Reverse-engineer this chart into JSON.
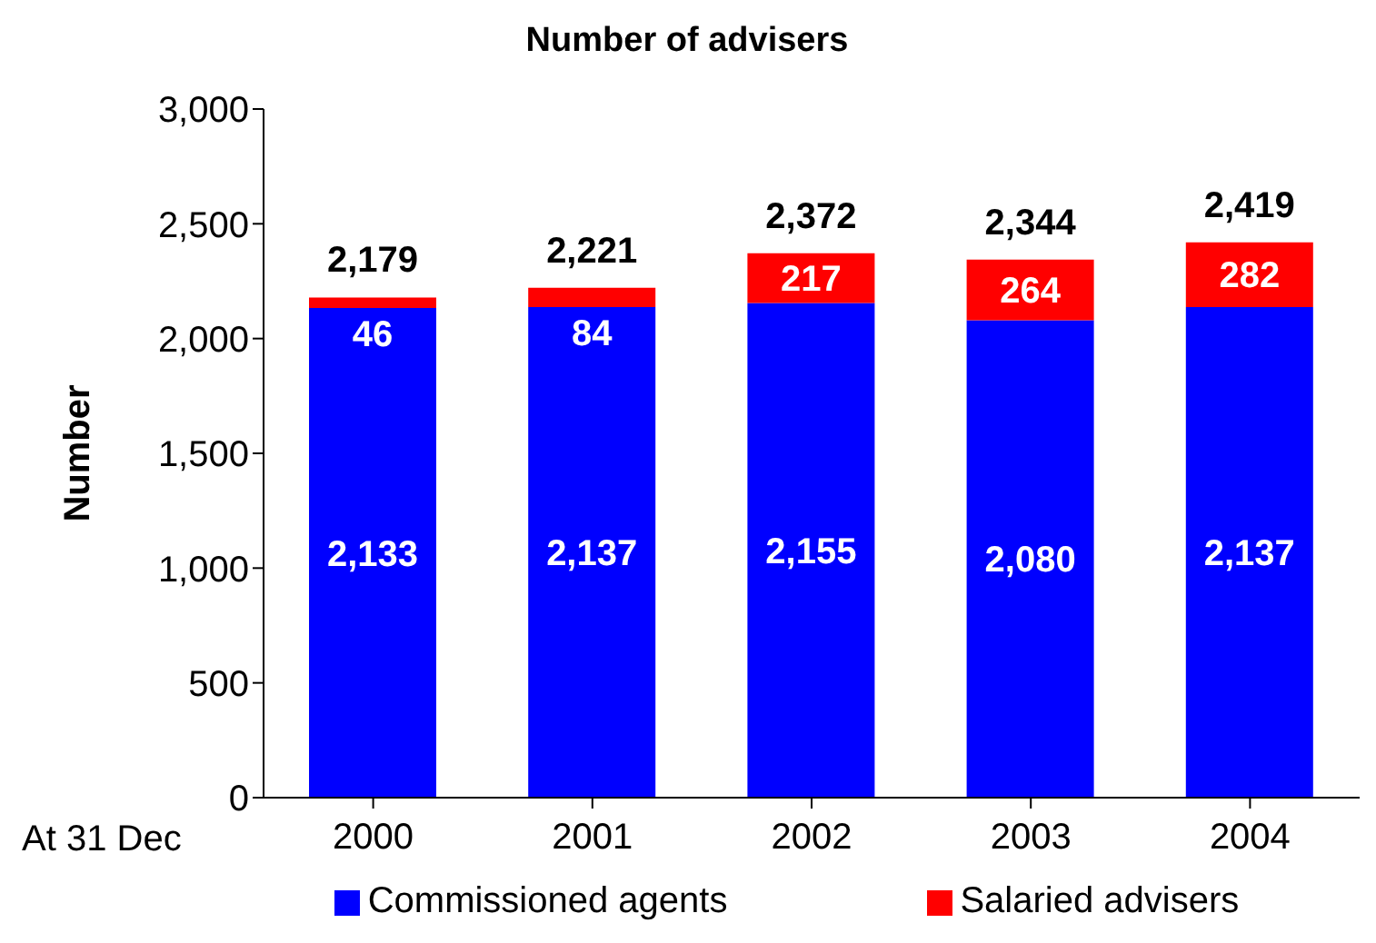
{
  "chart_data": {
    "type": "bar",
    "title": "Number of advisers",
    "xlabel": "At 31 Dec",
    "ylabel": "Number",
    "categories": [
      "2000",
      "2001",
      "2002",
      "2003",
      "2004"
    ],
    "stacked": true,
    "series": [
      {
        "name": "Commissioned agents",
        "color": "#0000ff",
        "values": [
          2133,
          2137,
          2155,
          2080,
          2137
        ],
        "value_labels": [
          "2,133",
          "2,137",
          "2,155",
          "2,080",
          "2,137"
        ]
      },
      {
        "name": "Salaried advisers",
        "color": "#ff0000",
        "values": [
          46,
          84,
          217,
          264,
          282
        ],
        "value_labels": [
          "46",
          "84",
          "217",
          "264",
          "282"
        ]
      }
    ],
    "totals": [
      "2,179",
      "2,221",
      "2,372",
      "2,344",
      "2,419"
    ],
    "ylim": [
      0,
      3000
    ],
    "yticks": [
      0,
      500,
      {
        "value": 1000,
        "label": "1,000"
      },
      {
        "value": 1500,
        "label": "1,500"
      },
      {
        "value": 2000,
        "label": "2,000"
      },
      {
        "value": 2500,
        "label": "2,500"
      },
      {
        "value": 3000,
        "label": "3,000"
      }
    ],
    "grid": false,
    "legend": "bottom"
  }
}
